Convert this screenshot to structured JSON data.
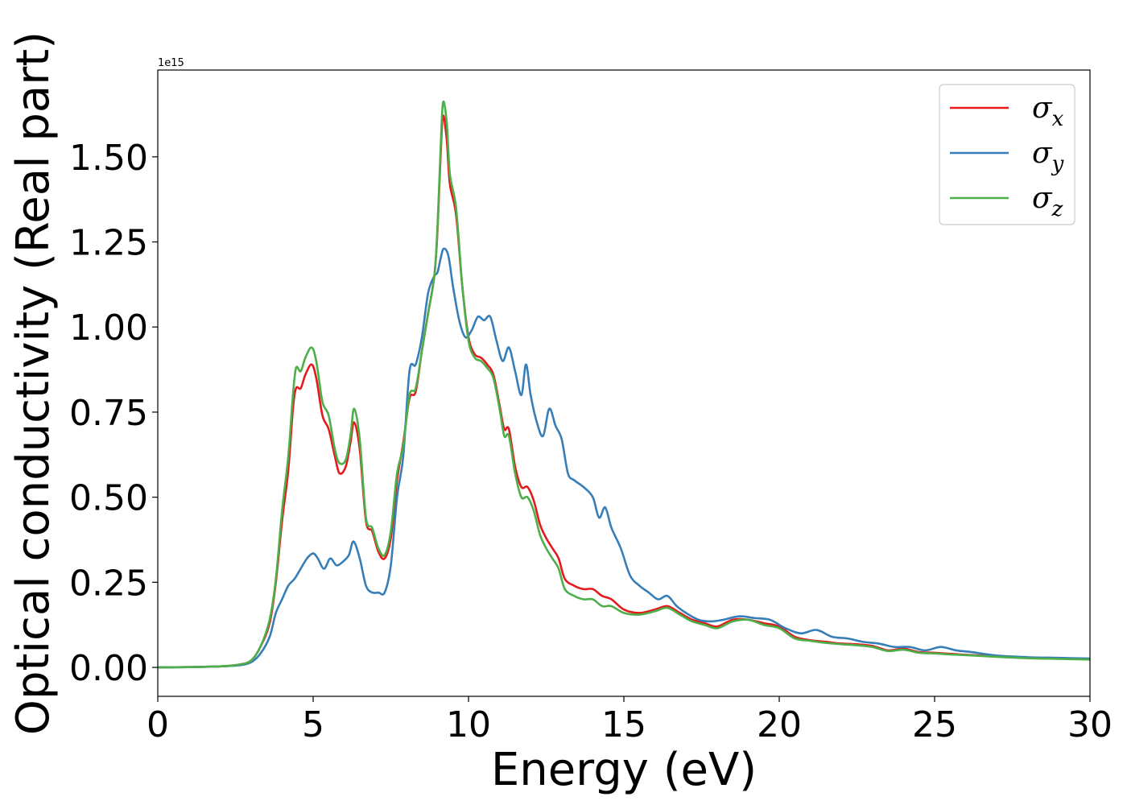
{
  "chart_data": {
    "type": "line",
    "xlabel": "Energy (eV)",
    "ylabel": "Optical conductivity (Real part)",
    "y_offset_text": "1e15",
    "xlim": [
      0,
      30
    ],
    "ylim": [
      -0.085,
      1.755
    ],
    "y_multiplier": 1000000000000000.0,
    "x_ticks": [
      0,
      5,
      10,
      15,
      20,
      25,
      30
    ],
    "x_tick_labels": [
      "0",
      "5",
      "10",
      "15",
      "20",
      "25",
      "30"
    ],
    "y_ticks": [
      0,
      0.25,
      0.5,
      0.75,
      1.0,
      1.25,
      1.5
    ],
    "y_tick_labels": [
      "0.00",
      "0.25",
      "0.50",
      "0.75",
      "1.00",
      "1.25",
      "1.50"
    ],
    "grid": false,
    "legend_position": "top-right",
    "series": [
      {
        "name": "σx",
        "legend_base": "σ",
        "legend_sub": "x",
        "color": "#e41a1c",
        "points": [
          [
            0,
            0.0
          ],
          [
            1,
            0.001
          ],
          [
            2,
            0.003
          ],
          [
            2.6,
            0.008
          ],
          [
            3.0,
            0.02
          ],
          [
            3.3,
            0.06
          ],
          [
            3.6,
            0.13
          ],
          [
            3.8,
            0.25
          ],
          [
            4.0,
            0.43
          ],
          [
            4.2,
            0.58
          ],
          [
            4.35,
            0.76
          ],
          [
            4.45,
            0.82
          ],
          [
            4.6,
            0.82
          ],
          [
            4.75,
            0.86
          ],
          [
            4.95,
            0.89
          ],
          [
            5.1,
            0.85
          ],
          [
            5.3,
            0.74
          ],
          [
            5.5,
            0.7
          ],
          [
            5.7,
            0.62
          ],
          [
            5.85,
            0.57
          ],
          [
            6.05,
            0.59
          ],
          [
            6.2,
            0.66
          ],
          [
            6.32,
            0.72
          ],
          [
            6.5,
            0.64
          ],
          [
            6.7,
            0.43
          ],
          [
            6.9,
            0.4
          ],
          [
            7.1,
            0.34
          ],
          [
            7.3,
            0.32
          ],
          [
            7.5,
            0.38
          ],
          [
            7.7,
            0.55
          ],
          [
            7.9,
            0.66
          ],
          [
            8.1,
            0.79
          ],
          [
            8.3,
            0.81
          ],
          [
            8.5,
            0.93
          ],
          [
            8.7,
            1.04
          ],
          [
            8.9,
            1.15
          ],
          [
            9.0,
            1.28
          ],
          [
            9.1,
            1.5
          ],
          [
            9.18,
            1.62
          ],
          [
            9.3,
            1.55
          ],
          [
            9.4,
            1.42
          ],
          [
            9.6,
            1.33
          ],
          [
            9.8,
            1.12
          ],
          [
            10.0,
            0.97
          ],
          [
            10.2,
            0.92
          ],
          [
            10.4,
            0.91
          ],
          [
            10.6,
            0.89
          ],
          [
            10.8,
            0.86
          ],
          [
            11.0,
            0.77
          ],
          [
            11.15,
            0.7
          ],
          [
            11.3,
            0.7
          ],
          [
            11.5,
            0.59
          ],
          [
            11.7,
            0.53
          ],
          [
            11.9,
            0.53
          ],
          [
            12.1,
            0.49
          ],
          [
            12.3,
            0.42
          ],
          [
            12.5,
            0.38
          ],
          [
            12.7,
            0.35
          ],
          [
            12.9,
            0.32
          ],
          [
            13.1,
            0.26
          ],
          [
            13.4,
            0.24
          ],
          [
            13.7,
            0.23
          ],
          [
            14.0,
            0.23
          ],
          [
            14.3,
            0.21
          ],
          [
            14.6,
            0.2
          ],
          [
            15.0,
            0.17
          ],
          [
            15.5,
            0.16
          ],
          [
            16.0,
            0.17
          ],
          [
            16.4,
            0.18
          ],
          [
            16.8,
            0.16
          ],
          [
            17.2,
            0.14
          ],
          [
            17.6,
            0.13
          ],
          [
            18.0,
            0.12
          ],
          [
            18.5,
            0.14
          ],
          [
            19.0,
            0.14
          ],
          [
            19.5,
            0.13
          ],
          [
            20.0,
            0.12
          ],
          [
            20.5,
            0.09
          ],
          [
            21.0,
            0.08
          ],
          [
            21.5,
            0.075
          ],
          [
            22.0,
            0.07
          ],
          [
            22.5,
            0.068
          ],
          [
            23.0,
            0.063
          ],
          [
            23.5,
            0.05
          ],
          [
            24.0,
            0.055
          ],
          [
            24.5,
            0.045
          ],
          [
            25.0,
            0.043
          ],
          [
            25.5,
            0.04
          ],
          [
            26.0,
            0.037
          ],
          [
            27.0,
            0.033
          ],
          [
            28.0,
            0.028
          ],
          [
            29.0,
            0.026
          ],
          [
            30.0,
            0.024
          ]
        ]
      },
      {
        "name": "σy",
        "legend_base": "σ",
        "legend_sub": "y",
        "color": "#377eb8",
        "points": [
          [
            0,
            0.0
          ],
          [
            1,
            0.001
          ],
          [
            2,
            0.003
          ],
          [
            2.6,
            0.006
          ],
          [
            3.0,
            0.015
          ],
          [
            3.3,
            0.04
          ],
          [
            3.6,
            0.09
          ],
          [
            3.8,
            0.16
          ],
          [
            4.0,
            0.2
          ],
          [
            4.2,
            0.24
          ],
          [
            4.4,
            0.26
          ],
          [
            4.6,
            0.29
          ],
          [
            4.8,
            0.32
          ],
          [
            5.0,
            0.335
          ],
          [
            5.15,
            0.32
          ],
          [
            5.35,
            0.29
          ],
          [
            5.55,
            0.32
          ],
          [
            5.75,
            0.3
          ],
          [
            5.95,
            0.31
          ],
          [
            6.15,
            0.33
          ],
          [
            6.3,
            0.37
          ],
          [
            6.5,
            0.32
          ],
          [
            6.7,
            0.24
          ],
          [
            6.9,
            0.22
          ],
          [
            7.1,
            0.22
          ],
          [
            7.3,
            0.22
          ],
          [
            7.5,
            0.3
          ],
          [
            7.7,
            0.5
          ],
          [
            7.9,
            0.62
          ],
          [
            8.1,
            0.87
          ],
          [
            8.3,
            0.89
          ],
          [
            8.5,
            0.97
          ],
          [
            8.7,
            1.1
          ],
          [
            8.9,
            1.15
          ],
          [
            9.0,
            1.16
          ],
          [
            9.1,
            1.2
          ],
          [
            9.2,
            1.23
          ],
          [
            9.35,
            1.21
          ],
          [
            9.5,
            1.12
          ],
          [
            9.7,
            1.02
          ],
          [
            9.9,
            0.97
          ],
          [
            10.1,
            0.99
          ],
          [
            10.3,
            1.03
          ],
          [
            10.5,
            1.02
          ],
          [
            10.7,
            1.03
          ],
          [
            10.9,
            0.96
          ],
          [
            11.1,
            0.9
          ],
          [
            11.3,
            0.94
          ],
          [
            11.5,
            0.87
          ],
          [
            11.7,
            0.8
          ],
          [
            11.85,
            0.89
          ],
          [
            12.0,
            0.8
          ],
          [
            12.2,
            0.72
          ],
          [
            12.4,
            0.68
          ],
          [
            12.6,
            0.76
          ],
          [
            12.8,
            0.71
          ],
          [
            13.0,
            0.67
          ],
          [
            13.2,
            0.57
          ],
          [
            13.4,
            0.55
          ],
          [
            13.7,
            0.53
          ],
          [
            14.0,
            0.5
          ],
          [
            14.2,
            0.44
          ],
          [
            14.4,
            0.47
          ],
          [
            14.6,
            0.41
          ],
          [
            14.9,
            0.35
          ],
          [
            15.2,
            0.27
          ],
          [
            15.5,
            0.24
          ],
          [
            15.8,
            0.22
          ],
          [
            16.1,
            0.2
          ],
          [
            16.4,
            0.21
          ],
          [
            16.7,
            0.18
          ],
          [
            17.0,
            0.16
          ],
          [
            17.4,
            0.14
          ],
          [
            17.8,
            0.135
          ],
          [
            18.2,
            0.14
          ],
          [
            18.7,
            0.15
          ],
          [
            19.2,
            0.145
          ],
          [
            19.7,
            0.14
          ],
          [
            20.2,
            0.115
          ],
          [
            20.7,
            0.1
          ],
          [
            21.2,
            0.11
          ],
          [
            21.7,
            0.09
          ],
          [
            22.2,
            0.085
          ],
          [
            22.7,
            0.075
          ],
          [
            23.2,
            0.07
          ],
          [
            23.7,
            0.06
          ],
          [
            24.2,
            0.06
          ],
          [
            24.7,
            0.05
          ],
          [
            25.2,
            0.06
          ],
          [
            25.7,
            0.05
          ],
          [
            26.2,
            0.045
          ],
          [
            27.0,
            0.035
          ],
          [
            28.0,
            0.03
          ],
          [
            29.0,
            0.028
          ],
          [
            30.0,
            0.026
          ]
        ]
      },
      {
        "name": "σz",
        "legend_base": "σ",
        "legend_sub": "z",
        "color": "#4daf4a",
        "points": [
          [
            0,
            0.0
          ],
          [
            1,
            0.001
          ],
          [
            2,
            0.003
          ],
          [
            2.6,
            0.008
          ],
          [
            3.0,
            0.02
          ],
          [
            3.3,
            0.06
          ],
          [
            3.6,
            0.14
          ],
          [
            3.8,
            0.26
          ],
          [
            4.0,
            0.46
          ],
          [
            4.2,
            0.62
          ],
          [
            4.35,
            0.8
          ],
          [
            4.45,
            0.88
          ],
          [
            4.6,
            0.87
          ],
          [
            4.75,
            0.91
          ],
          [
            4.95,
            0.94
          ],
          [
            5.1,
            0.9
          ],
          [
            5.3,
            0.78
          ],
          [
            5.5,
            0.74
          ],
          [
            5.7,
            0.64
          ],
          [
            5.85,
            0.6
          ],
          [
            6.05,
            0.61
          ],
          [
            6.2,
            0.68
          ],
          [
            6.32,
            0.76
          ],
          [
            6.5,
            0.67
          ],
          [
            6.7,
            0.44
          ],
          [
            6.9,
            0.41
          ],
          [
            7.1,
            0.35
          ],
          [
            7.3,
            0.33
          ],
          [
            7.5,
            0.4
          ],
          [
            7.7,
            0.57
          ],
          [
            7.9,
            0.65
          ],
          [
            8.1,
            0.8
          ],
          [
            8.3,
            0.82
          ],
          [
            8.5,
            0.93
          ],
          [
            8.7,
            1.04
          ],
          [
            8.9,
            1.15
          ],
          [
            9.0,
            1.29
          ],
          [
            9.1,
            1.52
          ],
          [
            9.18,
            1.66
          ],
          [
            9.3,
            1.6
          ],
          [
            9.4,
            1.45
          ],
          [
            9.6,
            1.35
          ],
          [
            9.8,
            1.12
          ],
          [
            10.0,
            0.96
          ],
          [
            10.2,
            0.91
          ],
          [
            10.4,
            0.9
          ],
          [
            10.6,
            0.88
          ],
          [
            10.8,
            0.85
          ],
          [
            11.0,
            0.76
          ],
          [
            11.15,
            0.68
          ],
          [
            11.3,
            0.68
          ],
          [
            11.5,
            0.57
          ],
          [
            11.7,
            0.5
          ],
          [
            11.9,
            0.5
          ],
          [
            12.1,
            0.46
          ],
          [
            12.3,
            0.39
          ],
          [
            12.5,
            0.35
          ],
          [
            12.7,
            0.32
          ],
          [
            12.9,
            0.29
          ],
          [
            13.1,
            0.23
          ],
          [
            13.4,
            0.21
          ],
          [
            13.7,
            0.2
          ],
          [
            14.0,
            0.2
          ],
          [
            14.3,
            0.18
          ],
          [
            14.6,
            0.18
          ],
          [
            15.0,
            0.16
          ],
          [
            15.5,
            0.155
          ],
          [
            16.0,
            0.165
          ],
          [
            16.4,
            0.175
          ],
          [
            16.8,
            0.155
          ],
          [
            17.2,
            0.135
          ],
          [
            17.6,
            0.125
          ],
          [
            18.0,
            0.115
          ],
          [
            18.5,
            0.135
          ],
          [
            19.0,
            0.14
          ],
          [
            19.5,
            0.125
          ],
          [
            20.0,
            0.115
          ],
          [
            20.5,
            0.085
          ],
          [
            21.0,
            0.078
          ],
          [
            21.5,
            0.072
          ],
          [
            22.0,
            0.068
          ],
          [
            22.5,
            0.065
          ],
          [
            23.0,
            0.06
          ],
          [
            23.5,
            0.048
          ],
          [
            24.0,
            0.052
          ],
          [
            24.5,
            0.043
          ],
          [
            25.0,
            0.041
          ],
          [
            25.5,
            0.038
          ],
          [
            26.0,
            0.036
          ],
          [
            27.0,
            0.031
          ],
          [
            28.0,
            0.027
          ],
          [
            29.0,
            0.025
          ],
          [
            30.0,
            0.023
          ]
        ]
      }
    ]
  }
}
